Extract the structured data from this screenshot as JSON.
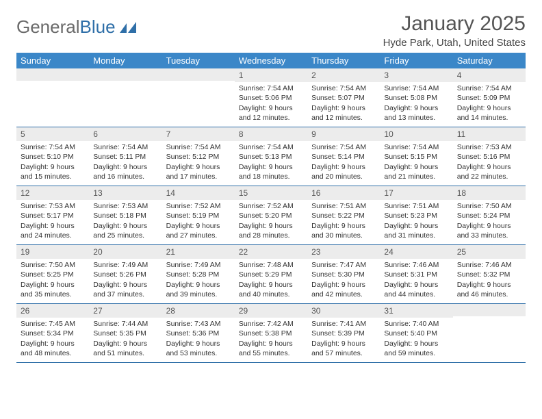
{
  "logo": {
    "text1": "General",
    "text2": "Blue"
  },
  "title": "January 2025",
  "location": "Hyde Park, Utah, United States",
  "colors": {
    "header_bg": "#3b87c8",
    "header_text": "#ffffff",
    "daynum_bg": "#ececec",
    "border": "#2f6fa8",
    "logo_gray": "#6a6a6a",
    "logo_blue": "#2f6fa8"
  },
  "day_names": [
    "Sunday",
    "Monday",
    "Tuesday",
    "Wednesday",
    "Thursday",
    "Friday",
    "Saturday"
  ],
  "weeks": [
    [
      {
        "num": "",
        "lines": []
      },
      {
        "num": "",
        "lines": []
      },
      {
        "num": "",
        "lines": []
      },
      {
        "num": "1",
        "lines": [
          "Sunrise: 7:54 AM",
          "Sunset: 5:06 PM",
          "Daylight: 9 hours",
          "and 12 minutes."
        ]
      },
      {
        "num": "2",
        "lines": [
          "Sunrise: 7:54 AM",
          "Sunset: 5:07 PM",
          "Daylight: 9 hours",
          "and 12 minutes."
        ]
      },
      {
        "num": "3",
        "lines": [
          "Sunrise: 7:54 AM",
          "Sunset: 5:08 PM",
          "Daylight: 9 hours",
          "and 13 minutes."
        ]
      },
      {
        "num": "4",
        "lines": [
          "Sunrise: 7:54 AM",
          "Sunset: 5:09 PM",
          "Daylight: 9 hours",
          "and 14 minutes."
        ]
      }
    ],
    [
      {
        "num": "5",
        "lines": [
          "Sunrise: 7:54 AM",
          "Sunset: 5:10 PM",
          "Daylight: 9 hours",
          "and 15 minutes."
        ]
      },
      {
        "num": "6",
        "lines": [
          "Sunrise: 7:54 AM",
          "Sunset: 5:11 PM",
          "Daylight: 9 hours",
          "and 16 minutes."
        ]
      },
      {
        "num": "7",
        "lines": [
          "Sunrise: 7:54 AM",
          "Sunset: 5:12 PM",
          "Daylight: 9 hours",
          "and 17 minutes."
        ]
      },
      {
        "num": "8",
        "lines": [
          "Sunrise: 7:54 AM",
          "Sunset: 5:13 PM",
          "Daylight: 9 hours",
          "and 18 minutes."
        ]
      },
      {
        "num": "9",
        "lines": [
          "Sunrise: 7:54 AM",
          "Sunset: 5:14 PM",
          "Daylight: 9 hours",
          "and 20 minutes."
        ]
      },
      {
        "num": "10",
        "lines": [
          "Sunrise: 7:54 AM",
          "Sunset: 5:15 PM",
          "Daylight: 9 hours",
          "and 21 minutes."
        ]
      },
      {
        "num": "11",
        "lines": [
          "Sunrise: 7:53 AM",
          "Sunset: 5:16 PM",
          "Daylight: 9 hours",
          "and 22 minutes."
        ]
      }
    ],
    [
      {
        "num": "12",
        "lines": [
          "Sunrise: 7:53 AM",
          "Sunset: 5:17 PM",
          "Daylight: 9 hours",
          "and 24 minutes."
        ]
      },
      {
        "num": "13",
        "lines": [
          "Sunrise: 7:53 AM",
          "Sunset: 5:18 PM",
          "Daylight: 9 hours",
          "and 25 minutes."
        ]
      },
      {
        "num": "14",
        "lines": [
          "Sunrise: 7:52 AM",
          "Sunset: 5:19 PM",
          "Daylight: 9 hours",
          "and 27 minutes."
        ]
      },
      {
        "num": "15",
        "lines": [
          "Sunrise: 7:52 AM",
          "Sunset: 5:20 PM",
          "Daylight: 9 hours",
          "and 28 minutes."
        ]
      },
      {
        "num": "16",
        "lines": [
          "Sunrise: 7:51 AM",
          "Sunset: 5:22 PM",
          "Daylight: 9 hours",
          "and 30 minutes."
        ]
      },
      {
        "num": "17",
        "lines": [
          "Sunrise: 7:51 AM",
          "Sunset: 5:23 PM",
          "Daylight: 9 hours",
          "and 31 minutes."
        ]
      },
      {
        "num": "18",
        "lines": [
          "Sunrise: 7:50 AM",
          "Sunset: 5:24 PM",
          "Daylight: 9 hours",
          "and 33 minutes."
        ]
      }
    ],
    [
      {
        "num": "19",
        "lines": [
          "Sunrise: 7:50 AM",
          "Sunset: 5:25 PM",
          "Daylight: 9 hours",
          "and 35 minutes."
        ]
      },
      {
        "num": "20",
        "lines": [
          "Sunrise: 7:49 AM",
          "Sunset: 5:26 PM",
          "Daylight: 9 hours",
          "and 37 minutes."
        ]
      },
      {
        "num": "21",
        "lines": [
          "Sunrise: 7:49 AM",
          "Sunset: 5:28 PM",
          "Daylight: 9 hours",
          "and 39 minutes."
        ]
      },
      {
        "num": "22",
        "lines": [
          "Sunrise: 7:48 AM",
          "Sunset: 5:29 PM",
          "Daylight: 9 hours",
          "and 40 minutes."
        ]
      },
      {
        "num": "23",
        "lines": [
          "Sunrise: 7:47 AM",
          "Sunset: 5:30 PM",
          "Daylight: 9 hours",
          "and 42 minutes."
        ]
      },
      {
        "num": "24",
        "lines": [
          "Sunrise: 7:46 AM",
          "Sunset: 5:31 PM",
          "Daylight: 9 hours",
          "and 44 minutes."
        ]
      },
      {
        "num": "25",
        "lines": [
          "Sunrise: 7:46 AM",
          "Sunset: 5:32 PM",
          "Daylight: 9 hours",
          "and 46 minutes."
        ]
      }
    ],
    [
      {
        "num": "26",
        "lines": [
          "Sunrise: 7:45 AM",
          "Sunset: 5:34 PM",
          "Daylight: 9 hours",
          "and 48 minutes."
        ]
      },
      {
        "num": "27",
        "lines": [
          "Sunrise: 7:44 AM",
          "Sunset: 5:35 PM",
          "Daylight: 9 hours",
          "and 51 minutes."
        ]
      },
      {
        "num": "28",
        "lines": [
          "Sunrise: 7:43 AM",
          "Sunset: 5:36 PM",
          "Daylight: 9 hours",
          "and 53 minutes."
        ]
      },
      {
        "num": "29",
        "lines": [
          "Sunrise: 7:42 AM",
          "Sunset: 5:38 PM",
          "Daylight: 9 hours",
          "and 55 minutes."
        ]
      },
      {
        "num": "30",
        "lines": [
          "Sunrise: 7:41 AM",
          "Sunset: 5:39 PM",
          "Daylight: 9 hours",
          "and 57 minutes."
        ]
      },
      {
        "num": "31",
        "lines": [
          "Sunrise: 7:40 AM",
          "Sunset: 5:40 PM",
          "Daylight: 9 hours",
          "and 59 minutes."
        ]
      },
      {
        "num": "",
        "lines": []
      }
    ]
  ]
}
